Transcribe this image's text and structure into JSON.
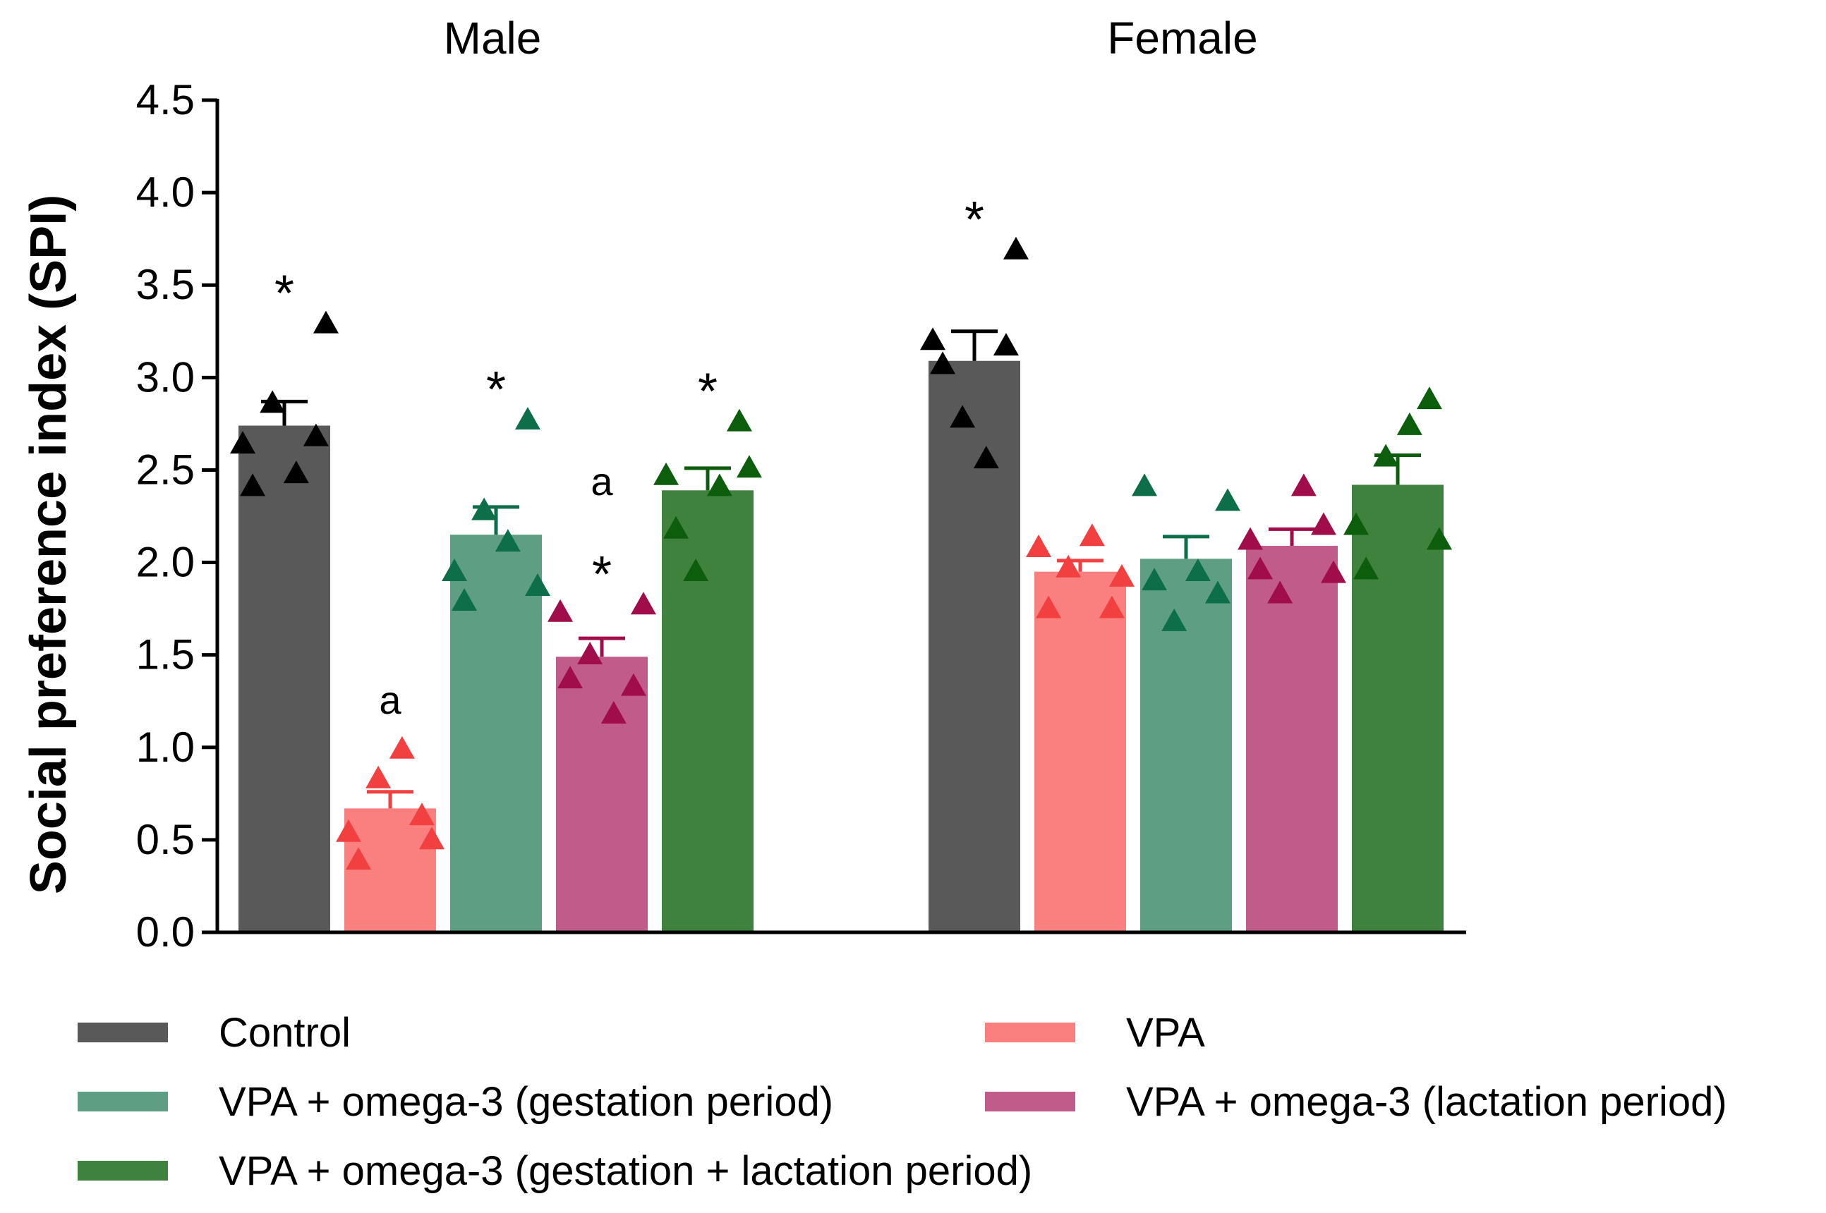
{
  "colors": {
    "control": "#595959",
    "control_marker": "#000000",
    "vpa": "#fa8080",
    "vpa_marker": "#f24040",
    "omega_gest": "#5e9e82",
    "omega_gest_marker": "#0d6e4a",
    "omega_lact": "#c05b8a",
    "omega_lact_marker": "#a00d4a",
    "omega_both": "#3e823e",
    "omega_both_marker": "#0c5e0c",
    "axis": "#000000"
  },
  "chart_data": {
    "type": "bar",
    "ylabel": "Social preference index (SPI)",
    "ylim": [
      0,
      4.5
    ],
    "yticks": [
      "0.0",
      "0.5",
      "1.0",
      "1.5",
      "2.0",
      "2.5",
      "3.0",
      "3.5",
      "4.0",
      "4.5"
    ],
    "groups": [
      "Male",
      "Female"
    ],
    "series": [
      {
        "name": "Control",
        "color_key": "control",
        "values": [
          2.74,
          3.09
        ],
        "sem": [
          0.13,
          0.16
        ],
        "points": [
          [
            2.65,
            2.42,
            2.87,
            2.49,
            2.69,
            3.3
          ],
          [
            3.21,
            3.08,
            2.79,
            2.57,
            3.18,
            3.7
          ]
        ],
        "annotations": [
          [
            "*"
          ],
          [
            "*"
          ]
        ]
      },
      {
        "name": "VPA",
        "color_key": "vpa",
        "values": [
          0.67,
          1.95
        ],
        "sem": [
          0.09,
          0.06
        ],
        "points": [
          [
            0.55,
            0.4,
            0.84,
            1.0,
            0.64,
            0.51
          ],
          [
            2.09,
            1.76,
            1.98,
            2.15,
            1.76,
            1.93
          ]
        ],
        "annotations": [
          [
            "a"
          ],
          []
        ]
      },
      {
        "name": "VPA + omega-3 (gestation period)",
        "color_key": "omega_gest",
        "values": [
          2.15,
          2.02
        ],
        "sem": [
          0.15,
          0.12
        ],
        "points": [
          [
            1.96,
            1.8,
            2.29,
            2.12,
            2.78,
            1.88
          ],
          [
            2.42,
            1.91,
            1.69,
            1.96,
            1.84,
            2.34
          ]
        ],
        "annotations": [
          [
            "*"
          ],
          []
        ]
      },
      {
        "name": "VPA + omega-3 (lactation period)",
        "color_key": "omega_lact",
        "values": [
          1.49,
          2.09
        ],
        "sem": [
          0.1,
          0.09
        ],
        "points": [
          [
            1.74,
            1.38,
            1.51,
            1.19,
            1.34,
            1.78
          ],
          [
            2.13,
            1.97,
            1.84,
            2.42,
            2.21,
            1.95
          ]
        ],
        "annotations": [
          [
            "a",
            "*"
          ],
          []
        ]
      },
      {
        "name": "VPA + omega-3 (gestation + lactation period)",
        "color_key": "omega_both",
        "values": [
          2.39,
          2.42
        ],
        "sem": [
          0.12,
          0.16
        ],
        "points": [
          [
            2.48,
            2.19,
            1.96,
            2.42,
            2.77,
            2.52
          ],
          [
            2.21,
            1.97,
            2.58,
            2.75,
            2.89,
            2.13
          ]
        ],
        "annotations": [
          [
            "*"
          ],
          []
        ]
      }
    ]
  }
}
